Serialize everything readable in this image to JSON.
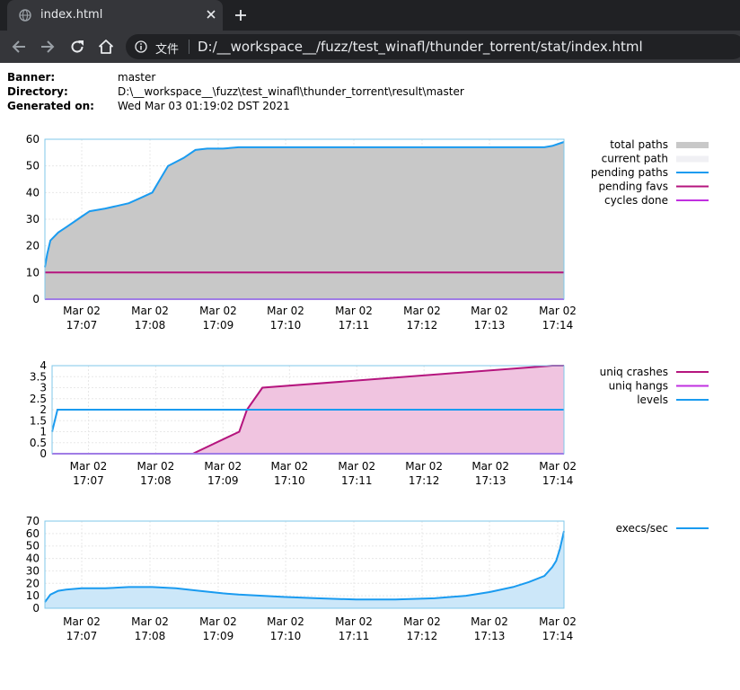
{
  "browser": {
    "tab_title": "index.html",
    "address_label": "文件",
    "url": "D:/__workspace__/fuzz/test_winafl/thunder_torrent/stat/index.html"
  },
  "info": [
    {
      "key": "Banner:",
      "value": "master"
    },
    {
      "key": "Directory:",
      "value": "D:\\__workspace__\\fuzz\\test_winafl\\thunder_torrent\\result\\master"
    },
    {
      "key": "Generated on:",
      "value": "Wed Mar 03 01:19:02 DST 2021"
    }
  ],
  "chart_data": [
    {
      "type": "area",
      "x_ticks": [
        [
          "Mar 02",
          "17:07"
        ],
        [
          "Mar 02",
          "17:08"
        ],
        [
          "Mar 02",
          "17:09"
        ],
        [
          "Mar 02",
          "17:10"
        ],
        [
          "Mar 02",
          "17:11"
        ],
        [
          "Mar 02",
          "17:12"
        ],
        [
          "Mar 02",
          "17:13"
        ],
        [
          "Mar 02",
          "17:14"
        ]
      ],
      "xlim": [
        17.53,
        24.15
      ],
      "ylim": [
        0,
        60
      ],
      "y_ticks": [
        0,
        10,
        20,
        30,
        40,
        50,
        60
      ],
      "grid": true,
      "legend_position": "right",
      "series": [
        {
          "name": "total paths",
          "style": "fill",
          "color": "#c8c8c8",
          "x": [
            17.53,
            17.56,
            17.6,
            17.7,
            17.8,
            17.9,
            18.0,
            18.1,
            18.3,
            18.45,
            18.6,
            18.75,
            18.9,
            19.0,
            19.1,
            19.3,
            19.45,
            19.6,
            19.8,
            20.0,
            20.4,
            21.0,
            22.0,
            23.0,
            23.9,
            24.0,
            24.1,
            24.15
          ],
          "values": [
            12,
            17,
            22,
            25,
            27,
            29,
            31,
            33,
            34,
            35,
            36,
            38,
            40,
            45,
            50,
            53,
            56,
            56.5,
            56.5,
            57,
            57,
            57,
            57,
            57,
            57,
            57.5,
            58.5,
            59
          ]
        },
        {
          "name": "current path",
          "style": "fill",
          "color": "#f0f0f4",
          "x": [],
          "values": []
        },
        {
          "name": "pending paths",
          "style": "line",
          "color": "#1a9bf0",
          "x": [
            17.53,
            17.56,
            17.6,
            17.7,
            17.8,
            17.9,
            18.0,
            18.1,
            18.3,
            18.45,
            18.6,
            18.75,
            18.9,
            19.0,
            19.1,
            19.3,
            19.45,
            19.6,
            19.8,
            20.0,
            20.4,
            21.0,
            22.0,
            23.0,
            23.9,
            24.0,
            24.1,
            24.15
          ],
          "values": [
            12,
            17,
            22,
            25,
            27,
            29,
            31,
            33,
            34,
            35,
            36,
            38,
            40,
            45,
            50,
            53,
            56,
            56.5,
            56.5,
            57,
            57,
            57,
            57,
            57,
            57,
            57.5,
            58.5,
            59
          ]
        },
        {
          "name": "pending favs",
          "style": "line",
          "color": "#b5157e",
          "x": [
            17.53,
            24.15
          ],
          "values": [
            10,
            10
          ]
        },
        {
          "name": "cycles done",
          "style": "line",
          "color": "#c030e0",
          "x": [
            17.53,
            24.15
          ],
          "values": [
            0,
            0
          ]
        }
      ]
    },
    {
      "type": "area",
      "x_ticks": [
        [
          "Mar 02",
          "17:07"
        ],
        [
          "Mar 02",
          "17:08"
        ],
        [
          "Mar 02",
          "17:09"
        ],
        [
          "Mar 02",
          "17:10"
        ],
        [
          "Mar 02",
          "17:11"
        ],
        [
          "Mar 02",
          "17:12"
        ],
        [
          "Mar 02",
          "17:13"
        ],
        [
          "Mar 02",
          "17:14"
        ]
      ],
      "xlim": [
        17.53,
        24.15
      ],
      "ylim": [
        0,
        4
      ],
      "y_ticks": [
        0,
        0.5,
        1,
        1.5,
        2,
        2.5,
        3,
        3.5,
        4
      ],
      "grid": true,
      "legend_position": "right",
      "series": [
        {
          "name": "uniq crashes",
          "style": "fill-line",
          "color": "#b5157e",
          "fill": "#f0c4e0",
          "x": [
            17.53,
            19.35,
            19.95,
            20.05,
            20.25,
            24.0,
            24.15
          ],
          "values": [
            0,
            0,
            1,
            2,
            3,
            4,
            4
          ]
        },
        {
          "name": "uniq hangs",
          "style": "line",
          "color": "#c030e0",
          "x": [
            17.53,
            24.15
          ],
          "values": [
            0,
            0
          ]
        },
        {
          "name": "levels",
          "style": "line",
          "color": "#1a9bf0",
          "x": [
            17.53,
            17.6,
            24.15
          ],
          "values": [
            1,
            2,
            2
          ]
        }
      ]
    },
    {
      "type": "area",
      "x_ticks": [
        [
          "Mar 02",
          "17:07"
        ],
        [
          "Mar 02",
          "17:08"
        ],
        [
          "Mar 02",
          "17:09"
        ],
        [
          "Mar 02",
          "17:10"
        ],
        [
          "Mar 02",
          "17:11"
        ],
        [
          "Mar 02",
          "17:12"
        ],
        [
          "Mar 02",
          "17:13"
        ],
        [
          "Mar 02",
          "17:14"
        ]
      ],
      "xlim": [
        17.53,
        24.15
      ],
      "ylim": [
        0,
        70
      ],
      "y_ticks": [
        0,
        10,
        20,
        30,
        40,
        50,
        60,
        70
      ],
      "grid": true,
      "legend_position": "right",
      "series": [
        {
          "name": "execs/sec",
          "style": "fill-line",
          "color": "#1a9bf0",
          "fill": "#cce7f9",
          "x": [
            17.53,
            17.6,
            17.7,
            17.8,
            18.0,
            18.3,
            18.6,
            18.9,
            19.2,
            19.5,
            19.8,
            20.0,
            20.3,
            20.6,
            21.0,
            21.5,
            22.0,
            22.5,
            22.9,
            23.2,
            23.5,
            23.7,
            23.9,
            24.0,
            24.05,
            24.1,
            24.15
          ],
          "values": [
            5,
            11,
            14,
            15,
            16,
            16,
            17,
            17,
            16,
            14,
            12,
            11,
            10,
            9,
            8,
            7,
            7,
            8,
            10,
            13,
            17,
            21,
            26,
            33,
            38,
            48,
            62
          ]
        }
      ]
    }
  ]
}
